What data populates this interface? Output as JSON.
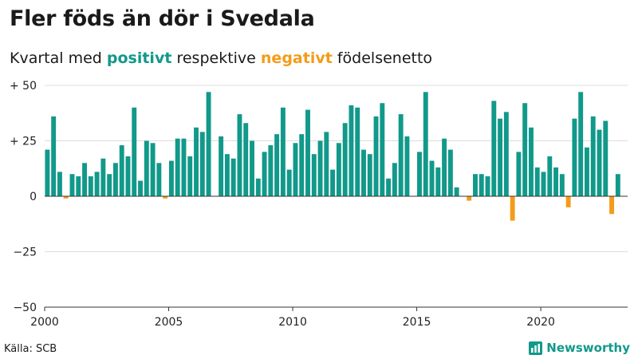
{
  "header": {
    "title": "Fler föds än dör i Svedala",
    "subtitle_prefix": "Kvartal med ",
    "subtitle_pos": "positivt",
    "subtitle_mid": " respektive ",
    "subtitle_neg": "negativt",
    "subtitle_suffix": " födelsenetto"
  },
  "footer": {
    "source": "Källa: SCB",
    "brand": "Newsworthy"
  },
  "colors": {
    "positive": "#11998a",
    "negative": "#f39c1a",
    "grid": "#dddddd",
    "zero_line": "#333333"
  },
  "chart_data": {
    "type": "bar",
    "title": "Fler föds än dör i Svedala",
    "subtitle": "Kvartal med positivt respektive negativt födelsenetto",
    "xlabel": "",
    "ylabel": "",
    "ylim": [
      -50,
      50
    ],
    "yticks": [
      50,
      25,
      0,
      -25,
      -50
    ],
    "ytick_labels": [
      "+ 50",
      "+ 25",
      "0",
      "−25",
      "−50"
    ],
    "xlim": [
      2000,
      2023.5
    ],
    "xticks": [
      2000,
      2005,
      2010,
      2015,
      2020
    ],
    "xtick_labels": [
      "2000",
      "2005",
      "2010",
      "2015",
      "2020"
    ],
    "start_year": 2000,
    "period": "quarter",
    "values": [
      21,
      36,
      11,
      -1,
      10,
      9,
      15,
      9,
      11,
      17,
      10,
      15,
      23,
      18,
      40,
      7,
      25,
      24,
      15,
      -1,
      16,
      26,
      26,
      18,
      31,
      29,
      47,
      0,
      27,
      19,
      17,
      37,
      33,
      25,
      8,
      20,
      23,
      28,
      40,
      12,
      24,
      28,
      39,
      19,
      25,
      29,
      12,
      24,
      33,
      41,
      40,
      21,
      19,
      36,
      42,
      8,
      15,
      37,
      27,
      0,
      20,
      47,
      16,
      13,
      26,
      21,
      4,
      0,
      -2,
      10,
      10,
      9,
      43,
      35,
      38,
      -11,
      20,
      42,
      31,
      13,
      11,
      18,
      13,
      10,
      -5,
      35,
      47,
      22,
      36,
      30,
      34,
      -8,
      10
    ]
  }
}
